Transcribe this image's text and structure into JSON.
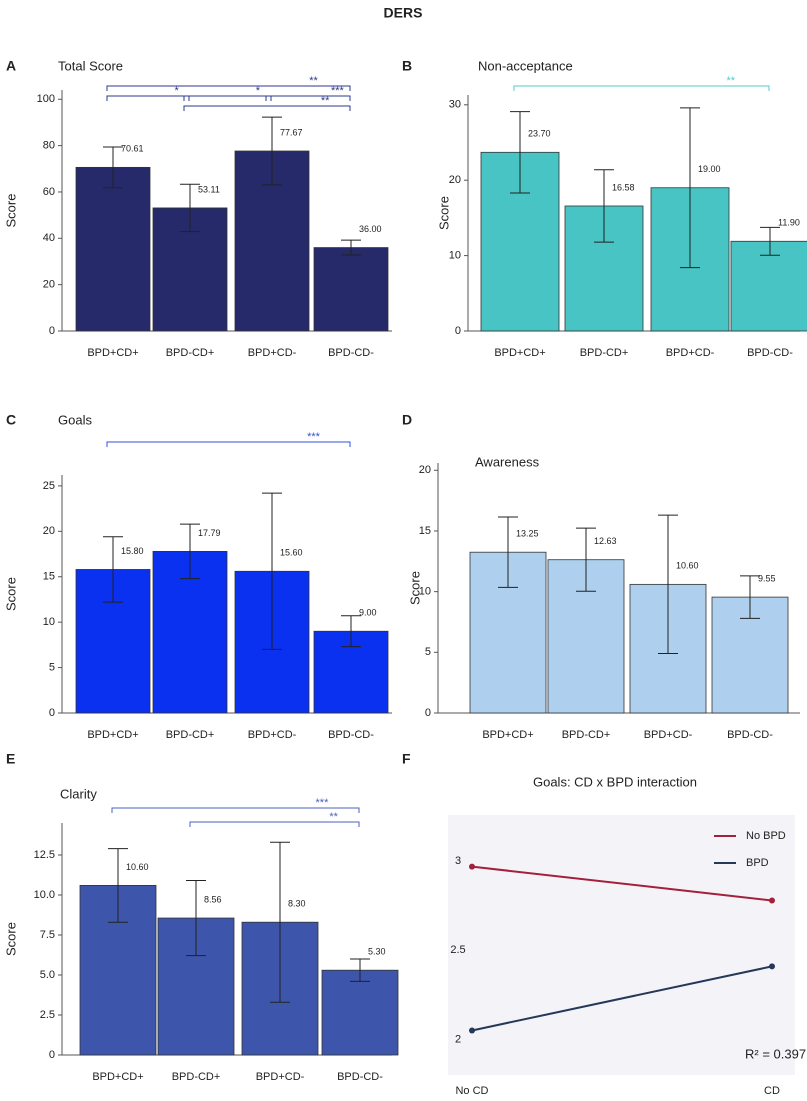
{
  "title": "DERS",
  "chart_data": [
    {
      "type": "bar",
      "panel_label": "A",
      "title": "Total Score",
      "y_label": "Score",
      "color": "#262a6b",
      "bracket_color": "#2d3a8c",
      "categories": [
        "BPD+CD+",
        "BPD-CD+",
        "BPD+CD-",
        "BPD-CD-"
      ],
      "values": [
        70.61,
        53.11,
        77.67,
        36
      ],
      "value_labels": [
        "70.61",
        "53.11",
        "77.67",
        "36.00"
      ],
      "errors": [
        8.8,
        10.2,
        14.6,
        3.2
      ],
      "ylim": [
        0,
        104
      ],
      "yticks": [
        0,
        20,
        40,
        60,
        80,
        100
      ],
      "significance": [
        {
          "label": "**",
          "between": [
            "BPD+CD+",
            "BPD-CD-"
          ]
        },
        {
          "label": "*",
          "between": [
            "BPD+CD+",
            "BPD-CD+"
          ]
        },
        {
          "label": "*",
          "between": [
            "BPD-CD+",
            "BPD+CD-"
          ]
        },
        {
          "label": "***",
          "between": [
            "BPD+CD-",
            "BPD-CD-"
          ]
        },
        {
          "label": "**",
          "between": [
            "BPD-CD+",
            "BPD-CD-"
          ]
        }
      ]
    },
    {
      "type": "bar",
      "panel_label": "B",
      "title": "Non-acceptance",
      "y_label": "Score",
      "color": "#48c4c4",
      "bracket_color": "#55c8c8",
      "categories": [
        "BPD+CD+",
        "BPD-CD+",
        "BPD+CD-",
        "BPD-CD-"
      ],
      "values": [
        23.7,
        16.58,
        19,
        11.9
      ],
      "value_labels": [
        "23.70",
        "16.58",
        "19.00",
        "11.90"
      ],
      "errors": [
        5.4,
        4.8,
        10.6,
        1.85
      ],
      "ylim": [
        0,
        31.3
      ],
      "yticks": [
        0,
        10,
        20,
        30
      ],
      "significance": [
        {
          "label": "**",
          "between": [
            "BPD+CD+",
            "BPD-CD-"
          ]
        }
      ]
    },
    {
      "type": "bar",
      "panel_label": "C",
      "title": "Goals",
      "y_label": "Score",
      "color": "#0a30f0",
      "bracket_color": "#3050e0",
      "categories": [
        "BPD+CD+",
        "BPD-CD+",
        "BPD+CD-",
        "BPD-CD-"
      ],
      "values": [
        15.8,
        17.79,
        15.6,
        9
      ],
      "value_labels": [
        "15.80",
        "17.79",
        "15.60",
        "9.00"
      ],
      "errors": [
        3.6,
        3,
        8.6,
        1.7
      ],
      "ylim": [
        0,
        26.2
      ],
      "yticks": [
        0,
        5,
        10,
        15,
        20,
        25
      ],
      "significance": [
        {
          "label": "***",
          "between": [
            "BPD+CD+",
            "BPD-CD-"
          ]
        }
      ]
    },
    {
      "type": "bar",
      "panel_label": "D",
      "title": "Awareness",
      "y_label": "Score",
      "color": "#aed0ee",
      "bracket_color": "#4a60c0",
      "categories": [
        "BPD+CD+",
        "BPD-CD+",
        "BPD+CD-",
        "BPD-CD-"
      ],
      "values": [
        13.25,
        12.63,
        10.6,
        9.55
      ],
      "value_labels": [
        "13.25",
        "12.63",
        "10.60",
        "9.55"
      ],
      "errors": [
        2.9,
        2.6,
        5.7,
        1.75
      ],
      "ylim": [
        0,
        20.6
      ],
      "yticks": [
        0,
        5,
        10,
        15,
        20
      ],
      "significance": []
    },
    {
      "type": "bar",
      "panel_label": "E",
      "title": "Clarity",
      "y_label": "Score",
      "color": "#3d56ab",
      "bracket_color": "#4a60c0",
      "categories": [
        "BPD+CD+",
        "BPD-CD+",
        "BPD+CD-",
        "BPD-CD-"
      ],
      "values": [
        10.6,
        8.56,
        8.3,
        5.3
      ],
      "value_labels": [
        "10.60",
        "8.56",
        "8.30",
        "5.30"
      ],
      "errors": [
        2.3,
        2.35,
        5,
        0.7
      ],
      "ylim": [
        0,
        14.5
      ],
      "yticks": [
        0,
        2.5,
        {
          "value": 5,
          "label": "5.0"
        },
        7.5,
        {
          "value": 10,
          "label": "10.0"
        },
        12.5
      ],
      "significance": [
        {
          "label": "***",
          "between": [
            "BPD+CD+",
            "BPD-CD-"
          ]
        },
        {
          "label": "**",
          "between": [
            "BPD-CD+",
            "BPD-CD-"
          ]
        }
      ]
    },
    {
      "type": "line",
      "panel_label": "F",
      "title": "Goals: CD x BPD interaction",
      "categories": [
        "No CD",
        "CD"
      ],
      "series": [
        {
          "name": "No BPD",
          "color": "#a3203d",
          "values": [
            2.97,
            2.78
          ]
        },
        {
          "name": "BPD",
          "color": "#253858",
          "values": [
            2.05,
            2.41
          ]
        }
      ],
      "ylim": [
        1.8,
        3.26
      ],
      "yticks": [
        2,
        2.5,
        3
      ],
      "annotation": "R² = 0.397"
    }
  ]
}
